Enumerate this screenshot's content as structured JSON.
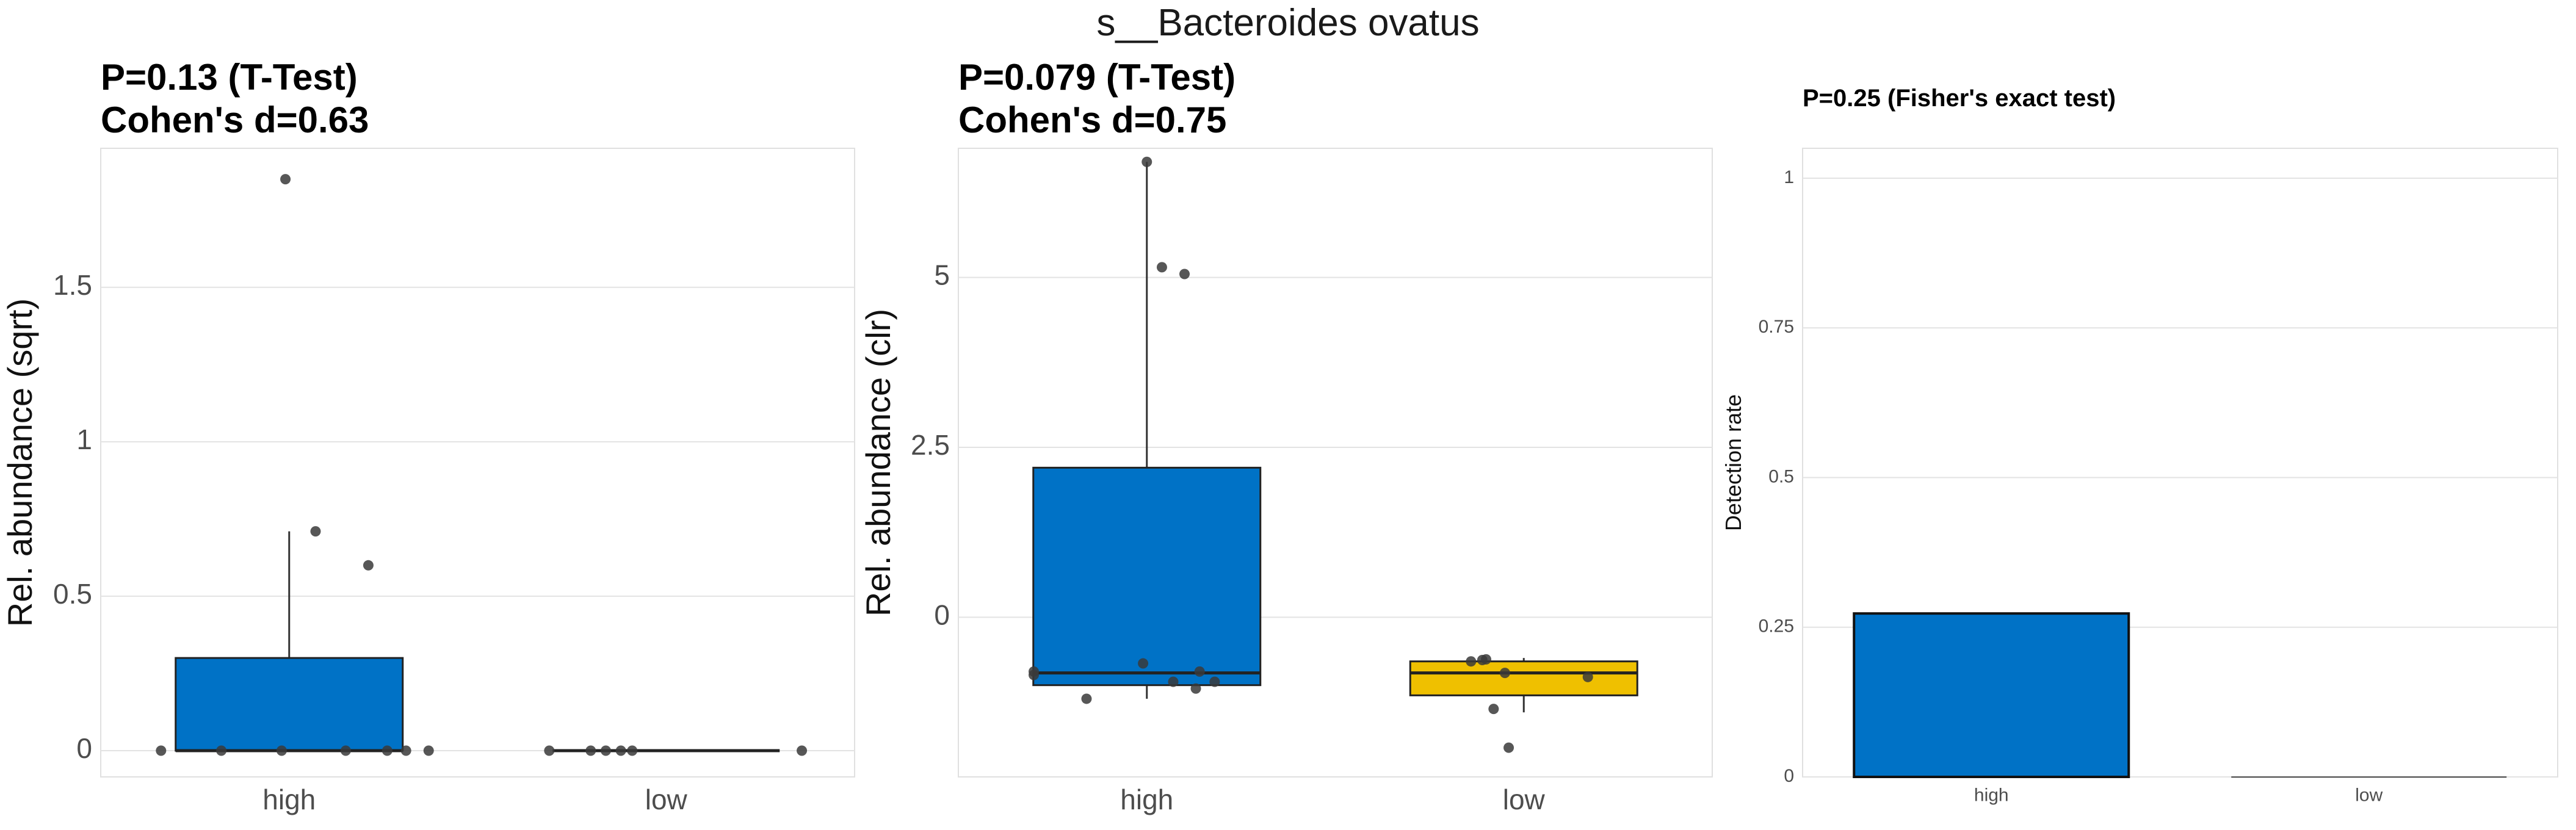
{
  "figure": {
    "title": "s__Bacteroides ovatus"
  },
  "colors": {
    "high": "#0072C6",
    "low": "#EFC000",
    "point": "#3a3a3a",
    "grid": "#e3e3e3",
    "panel_border": "#e0e0e0"
  },
  "panels": [
    {
      "title_line1": "P=0.13 (T-Test)",
      "title_line2": "Cohen's d=0.63"
    },
    {
      "title_line1": "P=0.079 (T-Test)",
      "title_line2": "Cohen's d=0.75"
    },
    {
      "title_line1": "P=0.25 (Fisher's exact test)",
      "title_line2": ""
    }
  ],
  "chart_data": [
    {
      "type": "box",
      "title": "P=0.13 (T-Test)\nCohen's d=0.63",
      "ylabel": "Rel. abundance (sqrt)",
      "xlabel": "",
      "categories": [
        "high",
        "low"
      ],
      "ylim": [
        -0.085,
        1.95
      ],
      "yticks": [
        0,
        0.5,
        1,
        1.5
      ],
      "ytick_labels": [
        "0",
        "0.5",
        "1",
        "1.5"
      ],
      "grid": true,
      "boxes": [
        {
          "category": "high",
          "q1": 0,
          "median": 0,
          "q3": 0.3,
          "whisker_low": 0,
          "whisker_high": 0.71
        },
        {
          "category": "low",
          "q1": 0,
          "median": 0,
          "q3": 0,
          "whisker_low": 0,
          "whisker_high": 0
        }
      ],
      "points": [
        {
          "category": "high",
          "jitter": -0.34,
          "y": 0
        },
        {
          "category": "high",
          "jitter": -0.18,
          "y": 0
        },
        {
          "category": "high",
          "jitter": -0.02,
          "y": 0
        },
        {
          "category": "high",
          "jitter": 0.15,
          "y": 0
        },
        {
          "category": "high",
          "jitter": 0.26,
          "y": 0
        },
        {
          "category": "high",
          "jitter": 0.31,
          "y": 0
        },
        {
          "category": "high",
          "jitter": 0.37,
          "y": 0
        },
        {
          "category": "high",
          "jitter": 0.07,
          "y": 0.71
        },
        {
          "category": "high",
          "jitter": 0.21,
          "y": 0.6
        },
        {
          "category": "high",
          "jitter": -0.01,
          "y": 1.85
        },
        {
          "category": "low",
          "jitter": -0.31,
          "y": 0
        },
        {
          "category": "low",
          "jitter": -0.2,
          "y": 0
        },
        {
          "category": "low",
          "jitter": -0.16,
          "y": 0
        },
        {
          "category": "low",
          "jitter": -0.12,
          "y": 0
        },
        {
          "category": "low",
          "jitter": -0.09,
          "y": 0
        },
        {
          "category": "low",
          "jitter": 0.36,
          "y": 0
        }
      ]
    },
    {
      "type": "box",
      "title": "P=0.079 (T-Test)\nCohen's d=0.75",
      "ylabel": "Rel. abundance (clr)",
      "xlabel": "",
      "categories": [
        "high",
        "low"
      ],
      "ylim": [
        -2.35,
        6.9
      ],
      "yticks": [
        0,
        2.5,
        5
      ],
      "ytick_labels": [
        "0",
        "2.5",
        "5"
      ],
      "grid": true,
      "boxes": [
        {
          "category": "high",
          "q1": -1.0,
          "median": -0.82,
          "q3": 2.2,
          "whisker_low": -1.2,
          "whisker_high": 6.7
        },
        {
          "category": "low",
          "q1": -1.15,
          "median": -0.82,
          "q3": -0.65,
          "whisker_low": -1.4,
          "whisker_high": -0.6
        }
      ],
      "points": [
        {
          "category": "high",
          "jitter": -0.16,
          "y": -1.2
        },
        {
          "category": "high",
          "jitter": -0.3,
          "y": -0.8
        },
        {
          "category": "high",
          "jitter": -0.3,
          "y": -0.85
        },
        {
          "category": "high",
          "jitter": -0.01,
          "y": -0.68
        },
        {
          "category": "high",
          "jitter": 0.07,
          "y": -0.95
        },
        {
          "category": "high",
          "jitter": 0.13,
          "y": -1.05
        },
        {
          "category": "high",
          "jitter": 0.14,
          "y": -0.8
        },
        {
          "category": "high",
          "jitter": 0.18,
          "y": -0.95
        },
        {
          "category": "high",
          "jitter": 0.04,
          "y": 5.15
        },
        {
          "category": "high",
          "jitter": 0.1,
          "y": 5.05
        },
        {
          "category": "high",
          "jitter": 0.0,
          "y": 6.7
        },
        {
          "category": "low",
          "jitter": -0.14,
          "y": -0.65
        },
        {
          "category": "low",
          "jitter": -0.11,
          "y": -0.63
        },
        {
          "category": "low",
          "jitter": -0.1,
          "y": -0.62
        },
        {
          "category": "low",
          "jitter": -0.05,
          "y": -0.82
        },
        {
          "category": "low",
          "jitter": 0.17,
          "y": -0.88
        },
        {
          "category": "low",
          "jitter": -0.08,
          "y": -1.35
        },
        {
          "category": "low",
          "jitter": -0.04,
          "y": -1.92
        }
      ]
    },
    {
      "type": "bar",
      "title": "P=0.25 (Fisher's exact test)",
      "ylabel": "Detection rate",
      "xlabel": "",
      "categories": [
        "high",
        "low"
      ],
      "values": [
        0.273,
        0
      ],
      "ylim": [
        0,
        1.05
      ],
      "yticks": [
        0,
        0.25,
        0.5,
        0.75,
        1
      ],
      "ytick_labels": [
        "0",
        "0.25",
        "0.5",
        "0.75",
        "1"
      ],
      "grid": true
    }
  ]
}
